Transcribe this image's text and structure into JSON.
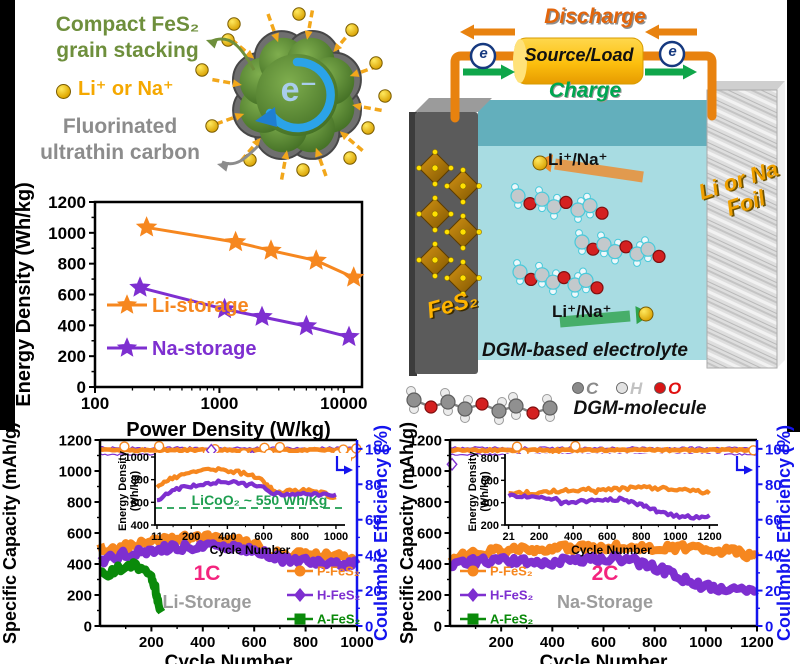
{
  "colors": {
    "orange": "#F6871F",
    "purple": "#7E2FD0",
    "green": "#0A8A0A",
    "blue_axis": "#1414EE",
    "magenta": "#F4247E",
    "gray_label": "#9C9C9C",
    "olive_text": "#6E8F3C",
    "amber_text": "#F5A800",
    "gray_text": "#8C8C8C",
    "wire_orange": "#E8820F",
    "charge_green": "#00A651",
    "discharge_orange": "#E2650B",
    "gold": "#FFC21E",
    "ref_green": "#1E9E50"
  },
  "mechanism": {
    "line1": "Compact FeS₂",
    "line2": "grain stacking",
    "ion_label": "Li⁺ or Na⁺",
    "carbon1": "Fluorinated",
    "carbon2": "ultrathin carbon",
    "electron": "e⁻"
  },
  "cell": {
    "discharge": "Discharge",
    "source_load": "Source/Load",
    "charge": "Charge",
    "electron": "e",
    "cathode_label": "FeS₂",
    "anode_line1": "Li or Na",
    "anode_line2": "Foil",
    "ion_top": "Li⁺/Na⁺",
    "ion_bottom": "Li⁺/Na⁺",
    "electrolyte_label": "DGM-based electrolyte",
    "molecule_label": "DGM-molecule",
    "atoms": [
      {
        "symbol": "C",
        "color": "#8a8a8a"
      },
      {
        "symbol": "H",
        "color": "#c2c2c2"
      },
      {
        "symbol": "O",
        "color": "#E01010"
      }
    ]
  },
  "chart_data": [
    {
      "id": "ragone",
      "type": "line",
      "xscale": "log",
      "xlabel": "Power Density (W/kg)",
      "ylabel": "Energy Density (Wh/kg)",
      "xlim": [
        100,
        14000
      ],
      "ylim": [
        0,
        1200
      ],
      "xticks": [
        100,
        1000,
        10000
      ],
      "yticks": [
        0,
        200,
        400,
        600,
        800,
        1000,
        1200
      ],
      "legend_position": "lower-left",
      "grid": false,
      "series": [
        {
          "name": "Li-storage",
          "color": "#F6871F",
          "marker": "star",
          "x": [
            260,
            1350,
            2600,
            6000,
            12000
          ],
          "y": [
            1035,
            940,
            885,
            820,
            710
          ]
        },
        {
          "name": "Na-storage",
          "color": "#7E2FD0",
          "marker": "star",
          "x": [
            230,
            1100,
            2200,
            5000,
            11000
          ],
          "y": [
            645,
            505,
            455,
            395,
            325
          ]
        }
      ]
    },
    {
      "id": "li_main",
      "type": "line",
      "xlabel": "Cycle Number",
      "ylabel": "Specific Capacity (mAh/g)",
      "y2label": "Coulumbic Efficiency (%)",
      "xlim": [
        0,
        1000
      ],
      "ylim": [
        0,
        1200
      ],
      "y2lim": [
        0,
        105
      ],
      "xticks": [
        200,
        400,
        600,
        800,
        1000
      ],
      "yticks": [
        0,
        200,
        400,
        600,
        800,
        1000,
        1200
      ],
      "y2ticks": [
        0,
        20,
        40,
        60,
        80,
        100
      ],
      "rate_label": "1C",
      "storage_label": "Li-Storage",
      "legend_side": "right",
      "legend": [
        {
          "label": "P-FeS₂",
          "color": "#F6871F",
          "marker": "circle"
        },
        {
          "label": "H-FeS₂",
          "color": "#7E2FD0",
          "marker": "diamond"
        },
        {
          "label": "A-FeS₂",
          "color": "#0A8A0A",
          "marker": "square"
        }
      ],
      "series": [
        {
          "name": "P-FeS₂",
          "color": "#F6871F",
          "x": [
            1,
            30,
            80,
            150,
            250,
            320,
            400,
            480,
            560,
            620,
            640,
            660,
            700,
            800,
            900,
            960,
            1000
          ],
          "y": [
            505,
            492,
            508,
            530,
            555,
            568,
            570,
            558,
            540,
            525,
            480,
            468,
            462,
            458,
            450,
            445,
            438
          ]
        },
        {
          "name": "H-FeS₂",
          "color": "#7E2FD0",
          "x": [
            1,
            30,
            80,
            150,
            250,
            350,
            430,
            520,
            600,
            640,
            660,
            700,
            760,
            850,
            950,
            1000
          ],
          "y": [
            395,
            430,
            458,
            480,
            500,
            512,
            515,
            508,
            495,
            480,
            455,
            435,
            422,
            412,
            405,
            398
          ]
        },
        {
          "name": "A-FeS₂",
          "color": "#0A8A0A",
          "x": [
            1,
            15,
            40,
            70,
            100,
            130,
            160,
            185,
            200,
            215,
            228,
            240
          ],
          "y": [
            330,
            342,
            338,
            368,
            385,
            388,
            372,
            352,
            330,
            240,
            140,
            90
          ]
        }
      ],
      "ce_lines": [
        {
          "color": "#7E2FD0",
          "y": 100.6,
          "w": 1.3,
          "amp": 1.1
        },
        {
          "color": "#7E2FD0",
          "y": 96.8,
          "w": 1.2,
          "amp": 0.9
        },
        {
          "color": "#F6871F",
          "y": 99.3,
          "w": 4.6,
          "amp": 0.9
        }
      ],
      "ce_outliers": [
        {
          "marker": "circle",
          "color": "#F6871F",
          "points": [
            [
              95,
              101.3
            ],
            [
              230,
              101.5
            ],
            [
              420,
              97.6
            ],
            [
              447,
              99.8
            ],
            [
              560,
              97
            ],
            [
              578,
              94.6
            ],
            [
              640,
              100.6
            ],
            [
              658,
              97.2
            ],
            [
              700,
              101
            ],
            [
              925,
              97
            ],
            [
              947,
              99.6
            ],
            [
              962,
              94.8
            ],
            [
              980,
              97.4
            ],
            [
              997,
              100.2
            ]
          ]
        },
        {
          "marker": "diamond",
          "color": "#7E2FD0",
          "points": [
            [
              433,
              99.2
            ],
            [
              592,
              95.6
            ]
          ]
        }
      ],
      "inset": {
        "xlabel": "Cycle Number",
        "ylabel1": "Energy Density",
        "ylabel2": "(Wh/kg)",
        "xlim": [
          0,
          1050
        ],
        "ylim": [
          400,
          1000
        ],
        "xticks": [
          11,
          200,
          400,
          600,
          800,
          1000
        ],
        "yticks": [
          400,
          600,
          800,
          1000
        ],
        "refline": {
          "value": 550,
          "label": "LiCoO₂ ~ 550 Wh/Kg",
          "color": "#1E9E50"
        },
        "series": [
          {
            "color": "#F6871F",
            "x": [
              11,
              60,
              120,
              200,
              280,
              350,
              420,
              490,
              550,
              600,
              630,
              660,
              700,
              760,
              820,
              880,
              930,
              970,
              1000
            ],
            "y": [
              718,
              788,
              828,
              858,
              878,
              892,
              878,
              855,
              825,
              785,
              740,
              700,
              692,
              700,
              705,
              695,
              678,
              655,
              645
            ]
          },
          {
            "color": "#7E2FD0",
            "x": [
              11,
              60,
              120,
              200,
              280,
              350,
              420,
              490,
              550,
              600,
              630,
              660,
              700,
              760,
              820,
              880,
              930,
              970,
              1000
            ],
            "y": [
              605,
              675,
              718,
              745,
              765,
              778,
              775,
              762,
              748,
              725,
              700,
              678,
              670,
              678,
              682,
              675,
              668,
              665,
              668
            ]
          }
        ]
      }
    },
    {
      "id": "na_main",
      "type": "line",
      "xlabel": "Cycle Number",
      "ylabel": "Specific Capacity (mAh/g)",
      "y2label": "Coulumbic Efficiency (%)",
      "xlim": [
        0,
        1200
      ],
      "ylim": [
        0,
        1200
      ],
      "y2lim": [
        0,
        105
      ],
      "xticks": [
        200,
        400,
        600,
        800,
        1000,
        1200
      ],
      "yticks": [
        0,
        200,
        400,
        600,
        800,
        1000,
        1200
      ],
      "y2ticks": [
        0,
        20,
        40,
        60,
        80,
        100
      ],
      "rate_label": "2C",
      "storage_label": "Na-Storage",
      "legend_side": "left",
      "legend": [
        {
          "label": "P-FeS₂",
          "color": "#F6871F",
          "marker": "circle"
        },
        {
          "label": "H-FeS₂",
          "color": "#7E2FD0",
          "marker": "diamond"
        },
        {
          "label": "A-FeS₂",
          "color": "#0A8A0A",
          "marker": "square"
        }
      ],
      "series": [
        {
          "name": "P-FeS₂",
          "color": "#F6871F",
          "x": [
            1,
            40,
            120,
            220,
            320,
            420,
            520,
            620,
            720,
            820,
            920,
            1020,
            1100,
            1160,
            1200
          ],
          "y": [
            415,
            450,
            472,
            488,
            498,
            503,
            505,
            508,
            510,
            508,
            503,
            495,
            480,
            462,
            450
          ]
        },
        {
          "name": "H-FeS₂",
          "color": "#7E2FD0",
          "x": [
            1,
            40,
            120,
            220,
            300,
            330,
            360,
            420,
            500,
            580,
            650,
            690,
            730,
            780,
            830,
            880,
            930,
            980,
            1030,
            1080,
            1130,
            1170,
            1200
          ],
          "y": [
            380,
            405,
            418,
            425,
            418,
            398,
            408,
            415,
            420,
            430,
            438,
            432,
            415,
            390,
            360,
            325,
            295,
            265,
            240,
            228,
            222,
            224,
            230
          ]
        }
      ],
      "ce_lines": [
        {
          "color": "#7E2FD0",
          "y": 100.6,
          "w": 1.3,
          "amp": 1.1
        },
        {
          "color": "#7E2FD0",
          "y": 96.8,
          "w": 1.2,
          "amp": 0.9
        },
        {
          "color": "#F6871F",
          "y": 99.3,
          "w": 4.6,
          "amp": 0.9
        }
      ],
      "ce_outliers": [
        {
          "marker": "circle",
          "color": "#F6871F",
          "points": [
            [
              262,
              101.2
            ],
            [
              287,
              97.2
            ],
            [
              306,
              93.6
            ],
            [
              413,
              95.6
            ],
            [
              490,
              101.6
            ],
            [
              1186,
              99.2
            ]
          ]
        },
        {
          "marker": "diamond",
          "color": "#7E2FD0",
          "points": [
            [
              8,
              91.3
            ],
            [
              274,
              94.1
            ]
          ]
        }
      ],
      "inset": {
        "xlabel": "Cycle Number",
        "ylabel1": "Energy Density",
        "ylabel2": "(Wh/kg)",
        "xlim": [
          0,
          1250
        ],
        "ylim": [
          200,
          800
        ],
        "xticks": [
          21,
          200,
          400,
          600,
          800,
          1000,
          1200
        ],
        "yticks": [
          200,
          400,
          600,
          800
        ],
        "series": [
          {
            "color": "#F6871F",
            "x": [
              21,
              100,
              200,
              300,
              400,
              490,
              520,
              560,
              640,
              720,
              800,
              880,
              960,
              1040,
              1120,
              1200
            ],
            "y": [
              487,
              489,
              491,
              504,
              514,
              519,
              498,
              512,
              520,
              528,
              534,
              530,
              525,
              518,
              510,
              482
            ]
          },
          {
            "color": "#7E2FD0",
            "x": [
              21,
              100,
              200,
              300,
              330,
              360,
              430,
              510,
              590,
              660,
              700,
              740,
              790,
              840,
              890,
              940,
              990,
              1040,
              1090,
              1140,
              1200
            ],
            "y": [
              460,
              452,
              443,
              434,
              400,
              408,
              414,
              419,
              427,
              432,
              428,
              412,
              385,
              355,
              325,
              300,
              285,
              276,
              272,
              275,
              288
            ]
          }
        ]
      }
    }
  ]
}
